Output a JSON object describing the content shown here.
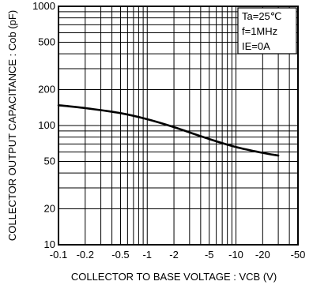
{
  "chart_data": {
    "type": "line",
    "xscale": "log",
    "yscale": "log",
    "xlabel": "COLLECTOR TO BASE VOLTAGE : VCB (V)",
    "ylabel": "COLLECTOR OUTPUT CAPACITANCE : Cob (pF)",
    "xlim": [
      -0.1,
      -50
    ],
    "ylim": [
      10,
      1000
    ],
    "x_ticks": [
      -0.1,
      -0.2,
      -0.5,
      -1,
      -2,
      -5,
      -10,
      -20,
      -50
    ],
    "x_tick_labels": [
      "-0.1",
      "-0.2",
      "-0.5",
      "-1",
      "-2",
      "-5",
      "-10",
      "-20",
      "-50"
    ],
    "y_ticks": [
      10,
      20,
      50,
      100,
      200,
      500,
      1000
    ],
    "y_tick_labels": [
      "10",
      "20",
      "50",
      "100",
      "200",
      "500",
      "1000"
    ],
    "grid": true,
    "conditions": [
      "Ta=25℃",
      "f=1MHz",
      "IE=0A"
    ],
    "conditions_position": "top-right",
    "series": [
      {
        "x": [
          -0.1,
          -0.2,
          -0.5,
          -1,
          -2,
          -5,
          -10,
          -20,
          -30
        ],
        "y": [
          148,
          140,
          127,
          113,
          97,
          77,
          66,
          59,
          56
        ]
      }
    ]
  }
}
